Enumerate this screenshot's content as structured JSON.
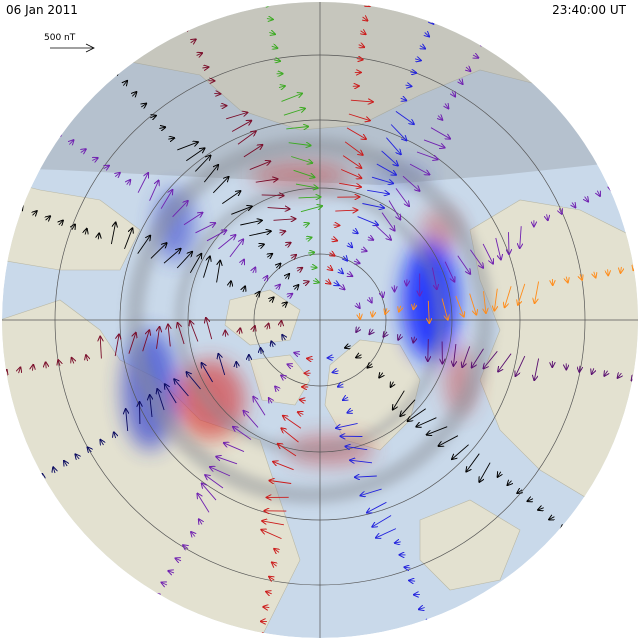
{
  "header": {
    "date": "06 Jan 2011",
    "time": "23:40:00  UT"
  },
  "scale": {
    "label": "500 nT"
  },
  "colors": {
    "ocean": "#c9d9ea",
    "land": "#e2e0cf",
    "night_shade": "#9aa0a6",
    "current_positive": "#d62020",
    "current_negative": "#2030d0",
    "grid": "#555555"
  },
  "vector_colors": [
    "#000000",
    "#0a0a60",
    "#2222dd",
    "#7020b0",
    "#5a1070",
    "#cc1a1a",
    "#7a0d2a",
    "#ff8c1a",
    "#b09000",
    "#3aaa20"
  ]
}
